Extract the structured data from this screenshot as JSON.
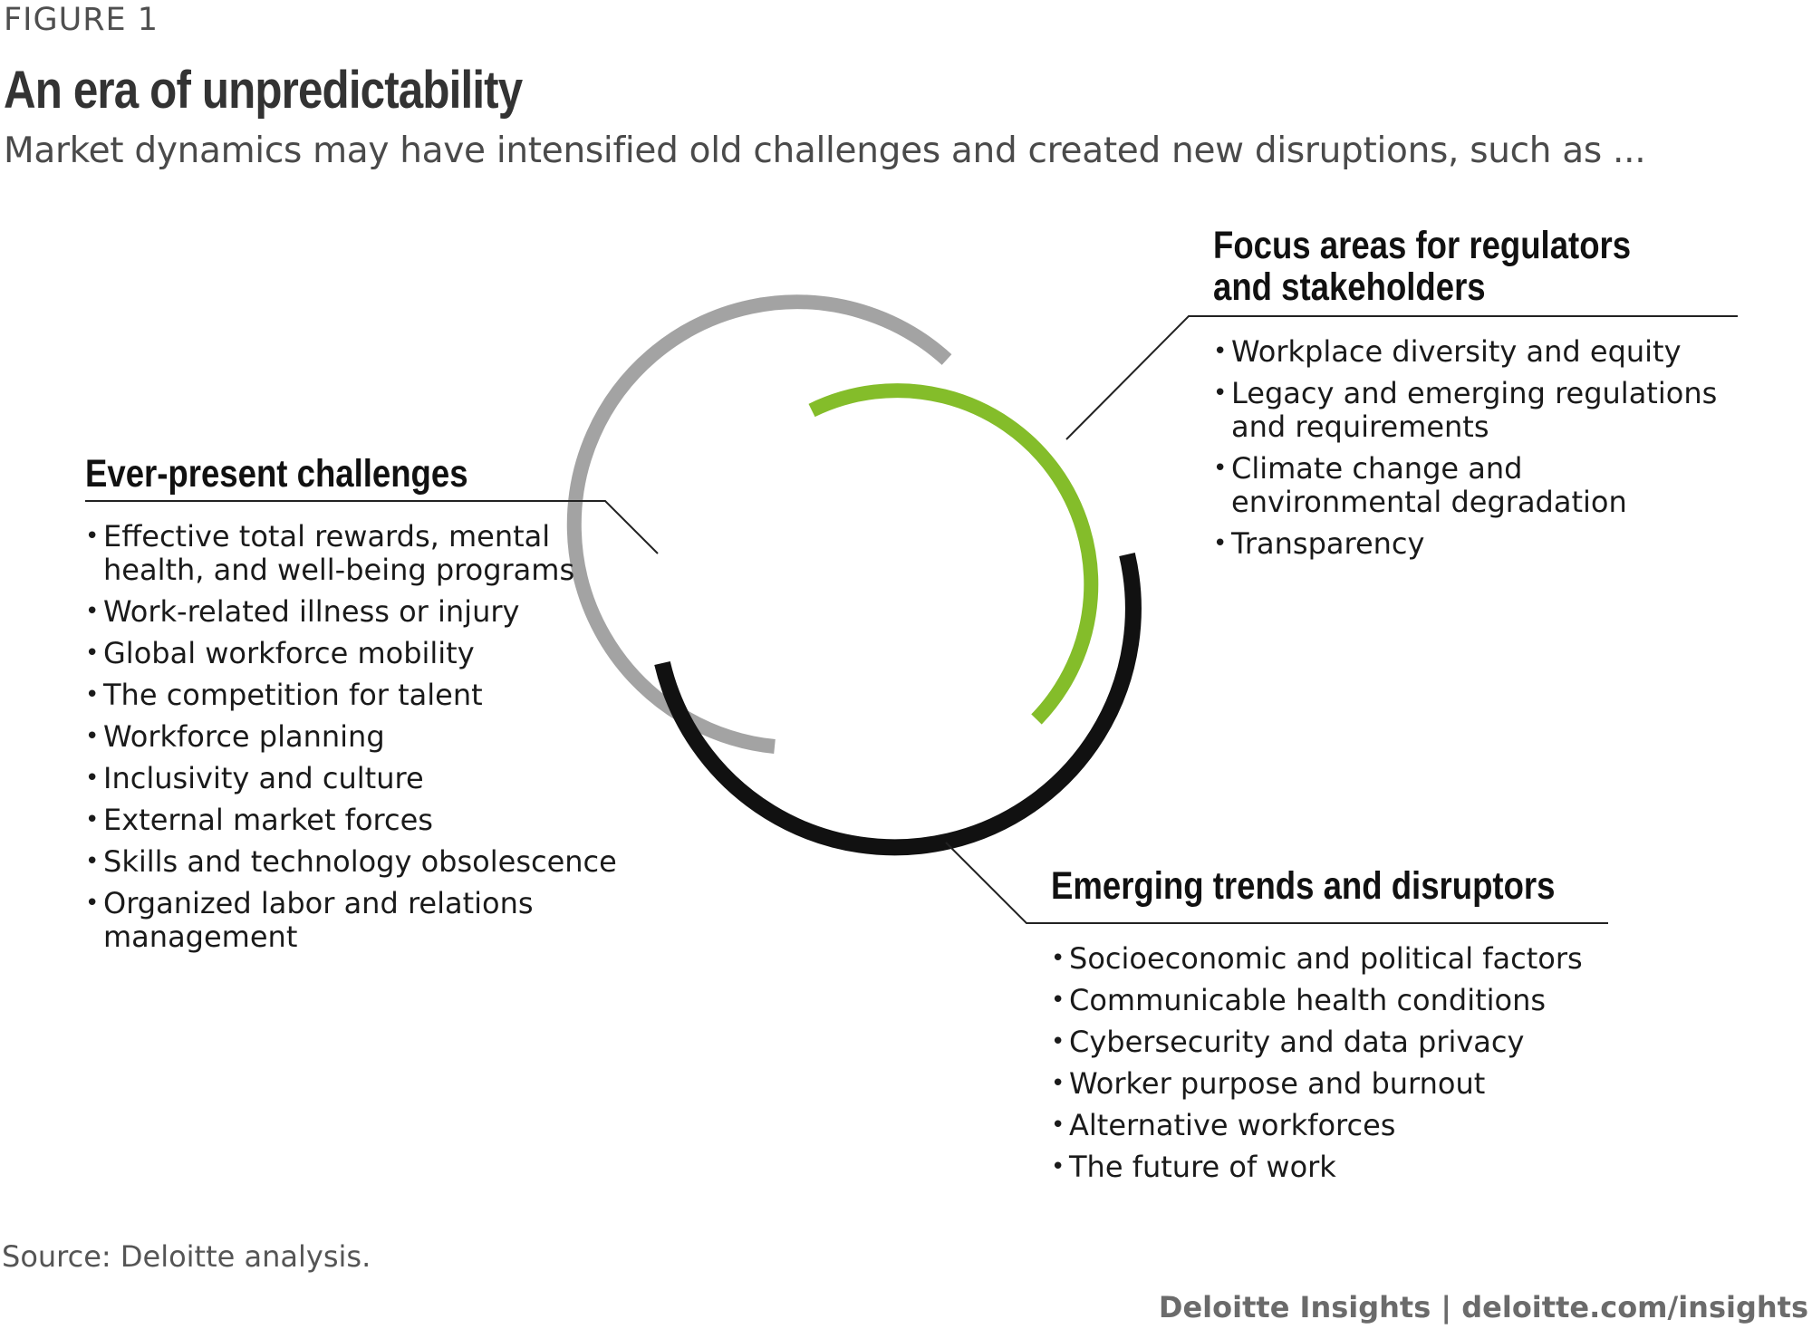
{
  "figure_label": "FIGURE 1",
  "title": "An era of unpredictability",
  "subtitle": "Market dynamics may have intensified old challenges and created new disruptions, such as ...",
  "colors": {
    "gray_arc": "#a3a3a3",
    "green_arc": "#84bd2a",
    "black_arc": "#111111",
    "connector": "#222222"
  },
  "sections": {
    "challenges": {
      "heading": "Ever-present challenges",
      "items": [
        "Effective total rewards, mental health, and well-being programs",
        "Work-related illness or injury",
        "Global workforce mobility",
        "The competition for talent",
        "Workforce planning",
        "Inclusivity and culture",
        "External market forces",
        "Skills and technology obsolescence",
        "Organized labor and relations management"
      ]
    },
    "focus": {
      "heading_line1": "Focus areas for regulators",
      "heading_line2": "and stakeholders",
      "items": [
        "Workplace diversity and equity",
        "Legacy and emerging regulations and requirements",
        "Climate change and environmental degradation",
        "Transparency"
      ]
    },
    "trends": {
      "heading": "Emerging trends and disruptors",
      "items": [
        "Socioeconomic and political factors",
        "Communicable health conditions",
        "Cybersecurity and data privacy",
        "Worker purpose and burnout",
        "Alternative workforces",
        "The future of work"
      ]
    }
  },
  "source": "Source: Deloitte analysis.",
  "footer": "Deloitte Insights | deloitte.com/insights"
}
